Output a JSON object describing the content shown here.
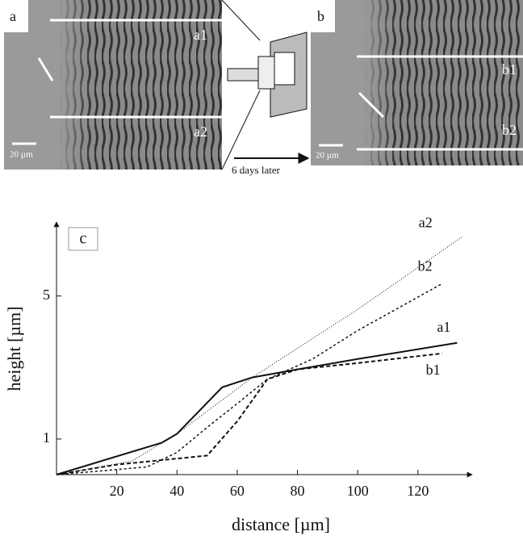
{
  "panels": {
    "a": {
      "label": "a",
      "lines": [
        "a1",
        "a2"
      ],
      "scale": "20 µm"
    },
    "b": {
      "label": "b",
      "lines": [
        "b1",
        "b2"
      ],
      "scale": "20 µm"
    },
    "arrow_label": "6 days later"
  },
  "chart_data": {
    "type": "line",
    "panel_label": "c",
    "x_label": "distance [µm]",
    "y_label": "height [µm]",
    "log_y": true,
    "xlim": [
      0,
      138
    ],
    "ylim": [
      0.67,
      11.5
    ],
    "xticks": [
      20,
      40,
      60,
      80,
      100,
      120
    ],
    "yticks": [
      1,
      5
    ],
    "series": [
      {
        "name": "a1",
        "color": "#111111",
        "line_style": "solid",
        "x": [
          0,
          35,
          40,
          55,
          65,
          80,
          100,
          133
        ],
        "values": [
          0.67,
          0.96,
          1.06,
          1.79,
          2.0,
          2.19,
          2.46,
          2.95
        ]
      },
      {
        "name": "a2",
        "color": "#111111",
        "line_style": "dotted",
        "x": [
          0,
          25,
          40,
          65,
          100,
          135
        ],
        "values": [
          0.67,
          0.78,
          1.06,
          2.0,
          4.3,
          9.8
        ]
      },
      {
        "name": "b1",
        "color": "#111111",
        "line_style": "dashed",
        "x": [
          0,
          20,
          50,
          60,
          70,
          80,
          100,
          128
        ],
        "values": [
          0.67,
          0.75,
          0.83,
          1.22,
          1.96,
          2.19,
          2.35,
          2.62
        ]
      },
      {
        "name": "b2",
        "color": "#111111",
        "line_style": "fine-dashed",
        "x": [
          0,
          30,
          40,
          50,
          60,
          70,
          85,
          100,
          128
        ],
        "values": [
          0.67,
          0.73,
          0.86,
          1.14,
          1.49,
          1.96,
          2.46,
          3.39,
          5.74
        ]
      }
    ]
  }
}
